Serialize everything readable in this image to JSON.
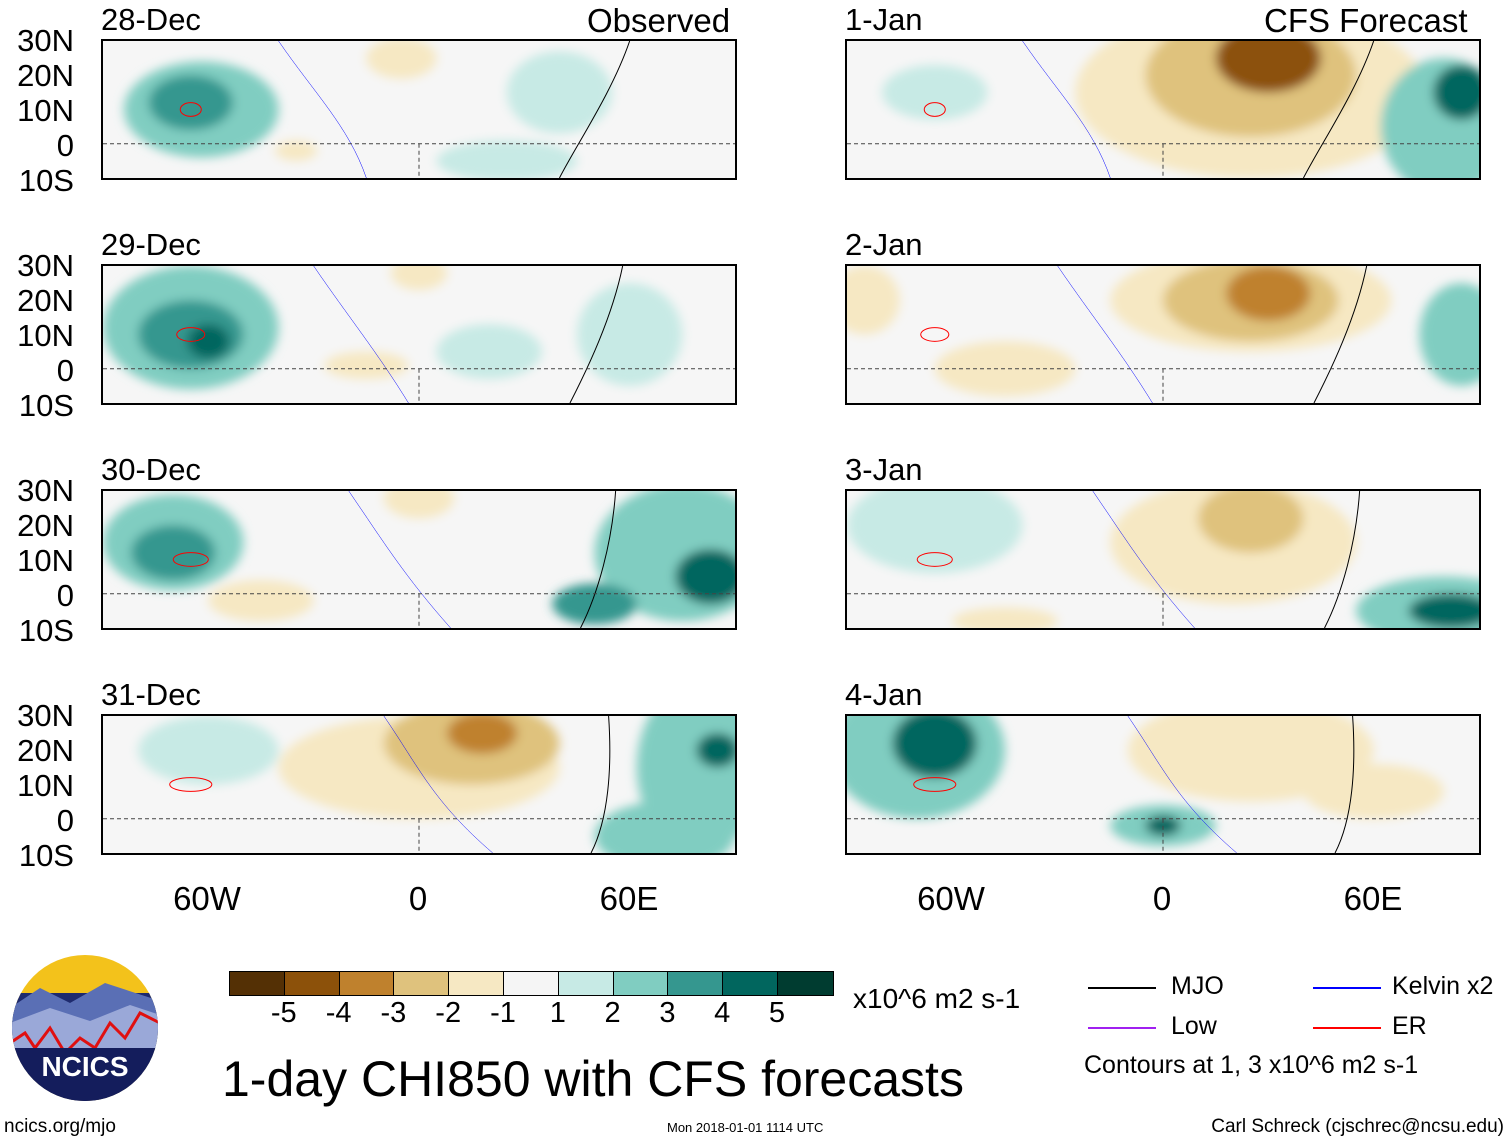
{
  "header": {
    "left_heading": "Observed",
    "right_heading": "CFS Forecast"
  },
  "panels_left": [
    {
      "date": "28-Dec"
    },
    {
      "date": "29-Dec"
    },
    {
      "date": "30-Dec"
    },
    {
      "date": "31-Dec"
    }
  ],
  "panels_right": [
    {
      "date": "1-Jan"
    },
    {
      "date": "2-Jan"
    },
    {
      "date": "3-Jan"
    },
    {
      "date": "4-Jan"
    }
  ],
  "lat_labels": [
    "30N",
    "20N",
    "10N",
    "0",
    "10S"
  ],
  "lon_labels": [
    "60W",
    "0",
    "60E"
  ],
  "colorbar": {
    "ticks": [
      "-5",
      "-4",
      "-3",
      "-2",
      "-1",
      "1",
      "2",
      "3",
      "4",
      "5"
    ],
    "colors": [
      "#543005",
      "#8c510a",
      "#bf812d",
      "#dfc27d",
      "#f6e8c3",
      "#f5f5f5",
      "#c7eae5",
      "#80cdc1",
      "#35978f",
      "#01665e",
      "#003c30"
    ],
    "units": "x10^6 m2 s-1"
  },
  "legend": {
    "items": [
      {
        "label": "MJO",
        "color": "#000000"
      },
      {
        "label": "Kelvin x2",
        "color": "#0000ff"
      },
      {
        "label": "Low",
        "color": "#a020f0"
      },
      {
        "label": "ER",
        "color": "#ff0000"
      }
    ],
    "note": "Contours at 1, 3 x10^6 m2 s-1"
  },
  "title": "1-day CHI850 with CFS forecasts",
  "footer": {
    "url": "ncics.org/mjo",
    "timestamp": "Mon 2018-01-01 1114 UTC",
    "credit": "Carl Schreck (cjschrec@ncsu.edu)"
  },
  "logo": {
    "text": "NCICS"
  }
}
